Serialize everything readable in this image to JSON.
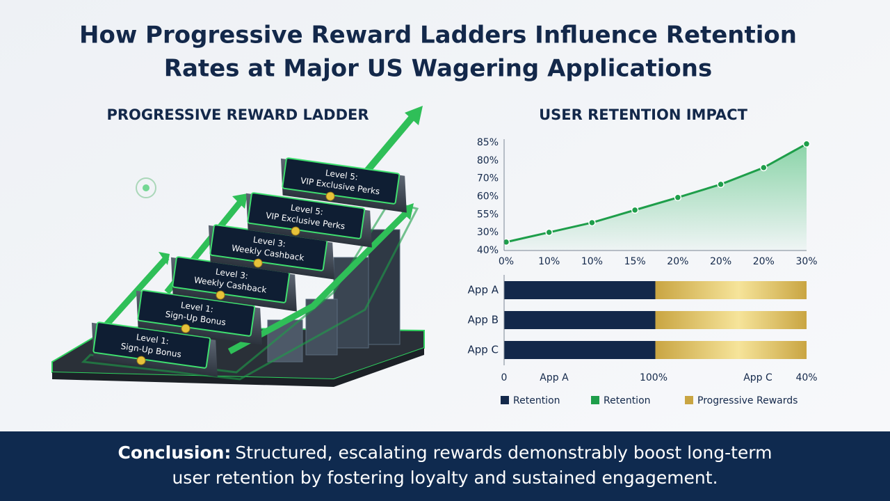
{
  "title_lines": [
    "How Progressive Reward Ladders Influence Retention",
    "Rates at Major US Wagering Applications"
  ],
  "ladder": {
    "heading": "PROGRESSIVE REWARD LADDER",
    "steps": [
      {
        "level": "Level 1:",
        "reward": "Sign-Up Bonus"
      },
      {
        "level": "Level 1:",
        "reward": "Sign-Up Bonus"
      },
      {
        "level": "Level 3:",
        "reward": "Weekly Cashback"
      },
      {
        "level": "Level 3:",
        "reward": "Weekly Cashback"
      },
      {
        "level": "Level 5:",
        "reward": "VIP Exclusive Perks"
      },
      {
        "level": "Level 5:",
        "reward": "VIP Exclusive Perks"
      }
    ]
  },
  "chart_data": [
    {
      "type": "line",
      "title": "USER RETENTION IMPACT",
      "categories": [
        "0%",
        "10%",
        "10%",
        "15%",
        "20%",
        "20%",
        "20%",
        "30%"
      ],
      "y_axis_labels": [
        "40%",
        "30%",
        "55%",
        "60%",
        "70%",
        "80%",
        "85%"
      ],
      "ylim": [
        0,
        6
      ],
      "series": [
        {
          "name": "Retention",
          "color": "#1e9e4a",
          "values": [
            0.47,
            1.01,
            1.55,
            2.25,
            2.95,
            3.68,
            4.61,
            5.93
          ]
        }
      ]
    },
    {
      "type": "bar",
      "orientation": "horizontal",
      "stacked": true,
      "categories": [
        "App A",
        "App B",
        "App C"
      ],
      "xlim": [
        0,
        100
      ],
      "x_axis_labels": [
        "0",
        "App A",
        "100%",
        "App C",
        "40%"
      ],
      "series": [
        {
          "name": "Retention",
          "color": "#13284a",
          "values": [
            50,
            50,
            50
          ]
        },
        {
          "name": "Progressive Rewards",
          "color": "#c9a542",
          "values": [
            50,
            50,
            50
          ]
        }
      ]
    }
  ],
  "conclusion": {
    "label": "Conclusion:",
    "lines": [
      "Structured, escalating rewards demonstrably boost long-term",
      "user retention by fostering loyalty and sustained engagement."
    ]
  }
}
